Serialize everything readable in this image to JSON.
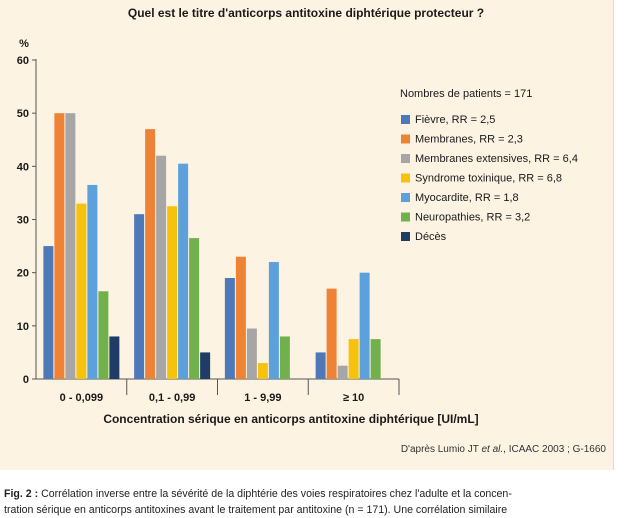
{
  "chart_data": {
    "type": "bar",
    "title": "Quel est le titre d'anticorps antitoxine diphtérique protecteur ?",
    "ylabel": "%",
    "xlabel": "Concentration sérique en anticorps antitoxine diphtérique [UI/mL]",
    "ylim": [
      0,
      60
    ],
    "yticks": [
      "0",
      "10",
      "20",
      "30",
      "40",
      "50",
      "60"
    ],
    "categories": [
      "0 - 0,099",
      "0,1 - 0,99",
      "1 - 9,99",
      "≥ 10"
    ],
    "legend_title": "Nombres de patients = 171",
    "legend_position": "right",
    "series": [
      {
        "name": "Fièvre, RR = 2,5",
        "color": "#4f78b8",
        "values": [
          25,
          31,
          19,
          5
        ]
      },
      {
        "name": "Membranes, RR = 2,3",
        "color": "#ee8336",
        "values": [
          50,
          47,
          23,
          17
        ]
      },
      {
        "name": "Membranes extensives, RR = 6,4",
        "color": "#a6a6a6",
        "values": [
          50,
          42,
          9.5,
          2.5
        ]
      },
      {
        "name": "Syndrome toxinique, RR = 6,8",
        "color": "#f7c20e",
        "values": [
          33,
          32.5,
          3,
          7.5
        ]
      },
      {
        "name": "Myocardite, RR = 1,8",
        "color": "#5ca1db",
        "values": [
          36.5,
          40.5,
          22,
          20
        ]
      },
      {
        "name": "Neuropathies, RR = 3,2",
        "color": "#72b04e",
        "values": [
          16.5,
          26.5,
          8,
          7.5
        ]
      },
      {
        "name": "Décès",
        "color": "#1f3c66",
        "values": [
          8,
          5,
          0,
          0
        ]
      }
    ]
  },
  "source": {
    "prefix": "D'après Lumio JT ",
    "italic": "et al.",
    "suffix": ", ICAAC 2003 ; G-1660"
  },
  "caption": {
    "label": "Fig. 2 :",
    "line1": "Corrélation inverse entre la sévérité de la diphtérie des voies respiratoires chez l'adulte et la concen-",
    "line2": "tration sérique en anticorps antitoxines avant le traitement par antitoxine (n = 171). Une corrélation similaire"
  }
}
